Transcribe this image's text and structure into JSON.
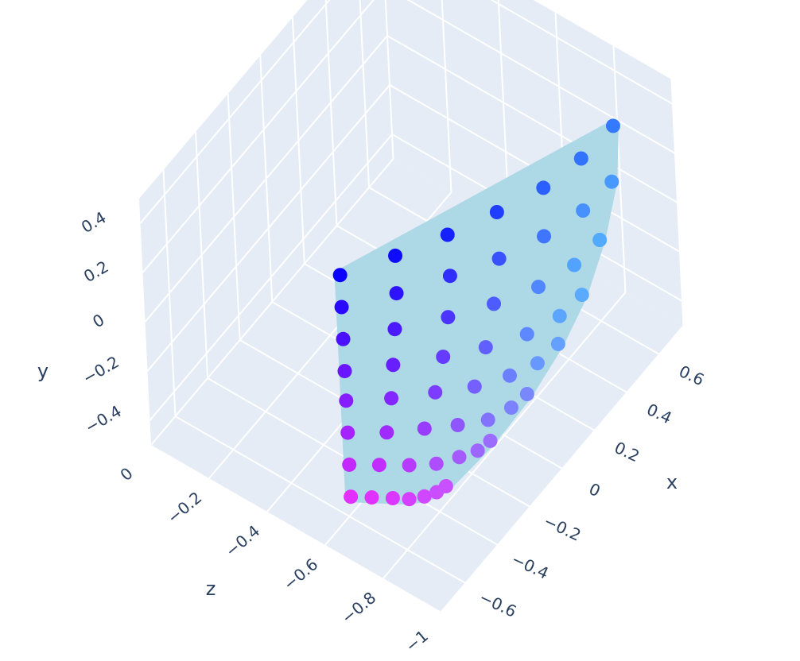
{
  "chart_data": {
    "type": "scatter3d",
    "x_label": "x",
    "y_label": "y",
    "z_label": "z",
    "xlim": [
      -0.75,
      0.75
    ],
    "ylim": [
      -0.5,
      0.5
    ],
    "zlim": [
      -1,
      0
    ],
    "xticks": [
      {
        "value": -0.6,
        "label": "−0.6"
      },
      {
        "value": -0.4,
        "label": "−0.4"
      },
      {
        "value": -0.2,
        "label": "−0.2"
      },
      0,
      0.2,
      0.4,
      0.6
    ],
    "yticks": [
      {
        "value": -0.4,
        "label": "−0.4"
      },
      {
        "value": -0.2,
        "label": "−0.2"
      },
      0,
      0.2,
      0.4
    ],
    "zticks": [
      0,
      {
        "value": -0.2,
        "label": "−0.2"
      },
      {
        "value": -0.4,
        "label": "−0.4"
      },
      {
        "value": -0.6,
        "label": "−0.6"
      },
      {
        "value": -0.8,
        "label": "−0.8"
      },
      {
        "value": -1,
        "label": "−1"
      }
    ],
    "grid": true,
    "panel_color": "#e5ecf6",
    "mesh_color": "#add8e6",
    "colors": [
      "#0000ff",
      "#ee33ff",
      "#55ddff"
    ],
    "series": [
      {
        "x": [
          -0.57,
          -0.39,
          -0.21,
          -0.03,
          0.15,
          0.33,
          0.51,
          -0.57,
          -0.41,
          -0.24,
          -0.08,
          0.09,
          0.26,
          0.42,
          -0.57,
          -0.43,
          -0.28,
          -0.14,
          0.01,
          0.16,
          0.3,
          -0.57,
          -0.45,
          -0.32,
          -0.2,
          -0.07,
          0.06,
          0.18,
          -0.57,
          -0.47,
          -0.36,
          -0.26,
          -0.15,
          -0.05,
          0.06,
          -0.57,
          -0.49,
          -0.4,
          -0.32,
          -0.24,
          -0.15,
          -0.07,
          -0.57,
          -0.51,
          -0.45,
          -0.39,
          -0.32,
          -0.26,
          -0.2,
          -0.57,
          -0.53,
          -0.49,
          -0.46,
          -0.42,
          -0.38,
          -0.34
        ],
        "y": [
          0.45,
          0.45,
          0.45,
          0.45,
          0.45,
          0.45,
          0.45,
          0.32,
          0.32,
          0.32,
          0.32,
          0.32,
          0.32,
          0.32,
          0.19,
          0.19,
          0.19,
          0.19,
          0.19,
          0.19,
          0.19,
          0.06,
          0.06,
          0.06,
          0.06,
          0.06,
          0.06,
          0.06,
          -0.06,
          -0.06,
          -0.06,
          -0.06,
          -0.06,
          -0.06,
          -0.06,
          -0.19,
          -0.19,
          -0.19,
          -0.19,
          -0.19,
          -0.19,
          -0.19,
          -0.32,
          -0.32,
          -0.32,
          -0.32,
          -0.32,
          -0.32,
          -0.32,
          -0.45,
          -0.45,
          -0.45,
          -0.45,
          -0.45,
          -0.45,
          -0.45
        ],
        "z": [
          -0.59,
          -0.68,
          -0.76,
          -0.83,
          -0.89,
          -0.92,
          -0.93,
          -0.59,
          -0.69,
          -0.78,
          -0.86,
          -0.92,
          -0.96,
          -0.97,
          -0.59,
          -0.69,
          -0.79,
          -0.87,
          -0.94,
          -0.98,
          -0.99,
          -0.59,
          -0.69,
          -0.79,
          -0.87,
          -0.94,
          -0.98,
          -0.99,
          -0.59,
          -0.69,
          -0.78,
          -0.86,
          -0.92,
          -0.96,
          -0.97,
          -0.59,
          -0.68,
          -0.76,
          -0.83,
          -0.89,
          -0.92,
          -0.93,
          -0.59,
          -0.66,
          -0.73,
          -0.79,
          -0.83,
          -0.86,
          -0.87,
          -0.59,
          -0.64,
          -0.69,
          -0.73,
          -0.76,
          -0.78,
          -0.79
        ]
      }
    ]
  }
}
